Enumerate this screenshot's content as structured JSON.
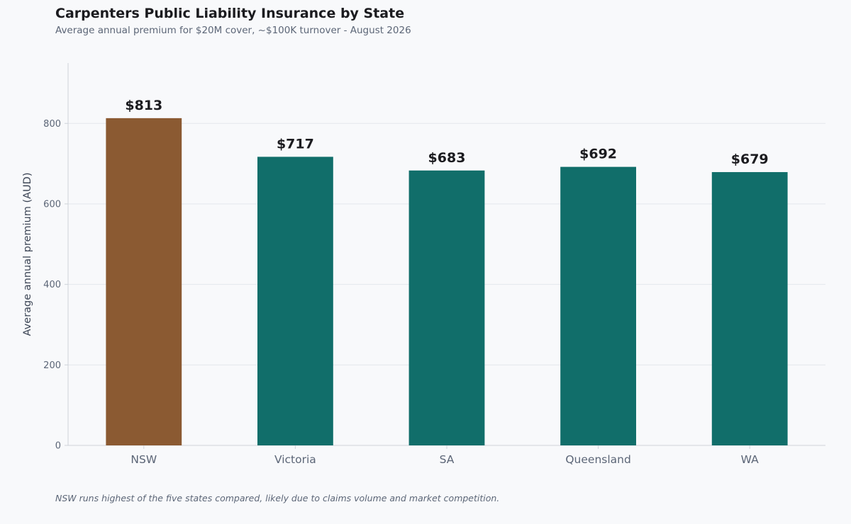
{
  "header": {
    "title": "Carpenters Public Liability Insurance by State",
    "subtitle": "Average annual premium for $20M cover, ~$100K turnover - August 2026"
  },
  "footer": {
    "note": "NSW runs highest of the five states compared, likely due to claims volume and market competition."
  },
  "chart_data": {
    "type": "bar",
    "title": "Carpenters Public Liability Insurance by State",
    "subtitle": "Average annual premium for $20M cover, ~$100K turnover - August 2026",
    "xlabel": "",
    "ylabel": "Average annual premium (AUD)",
    "categories": [
      "NSW",
      "Victoria",
      "SA",
      "Queensland",
      "WA"
    ],
    "values": [
      813,
      717,
      683,
      692,
      679
    ],
    "data_labels": [
      "$813",
      "$717",
      "$683",
      "$692",
      "$679"
    ],
    "bar_colors": [
      "#8b5a32",
      "#116e6a",
      "#116e6a",
      "#116e6a",
      "#116e6a"
    ],
    "ylim": [
      0,
      950
    ],
    "yticks": [
      0,
      200,
      400,
      600,
      800
    ],
    "grid": true,
    "grid_axis": "y",
    "legend": "none"
  },
  "colors": {
    "background": "#f8f9fb",
    "highlight_bar": "#8b5a32",
    "default_bar": "#116e6a",
    "grid": "#e4e7ec",
    "axis": "#cfd3da",
    "tick_text": "#5c6677",
    "label_text": "#1b1b1f"
  }
}
